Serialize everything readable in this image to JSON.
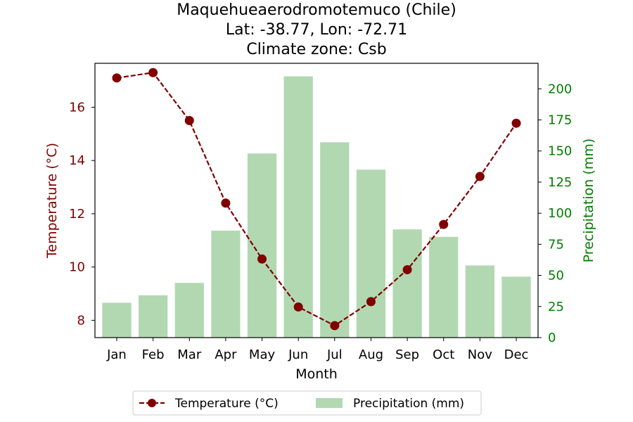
{
  "chart_data": {
    "type": "bar+line",
    "title_lines": [
      "Maquehueaerodromotemuco (Chile)",
      "Lat: -38.77, Lon: -72.71",
      "Climate zone: Csb"
    ],
    "xlabel": "Month",
    "ylabel_left": "Temperature (°C)",
    "ylabel_right": "Precipitation (mm)",
    "categories": [
      "Jan",
      "Feb",
      "Mar",
      "Apr",
      "May",
      "Jun",
      "Jul",
      "Aug",
      "Sep",
      "Oct",
      "Nov",
      "Dec"
    ],
    "temperature": {
      "name": "Temperature (°C)",
      "values": [
        17.1,
        17.3,
        15.5,
        12.4,
        10.3,
        8.5,
        7.8,
        8.7,
        9.9,
        11.6,
        13.4,
        15.4
      ],
      "color": "#800000",
      "axis": "left",
      "style": "dashed line with circle markers"
    },
    "precipitation": {
      "name": "Precipitation (mm)",
      "values": [
        28,
        34,
        44,
        86,
        148,
        210,
        157,
        135,
        87,
        81,
        58,
        49
      ],
      "color": "#b2d8b2",
      "axis": "right"
    },
    "ylim_left": [
      7.35,
      17.65
    ],
    "yticks_left": [
      8,
      10,
      12,
      14,
      16
    ],
    "left_axis_color": "#800000",
    "ylim_right": [
      0,
      220.5
    ],
    "yticks_right": [
      0,
      25,
      50,
      75,
      100,
      125,
      150,
      175,
      200
    ],
    "right_axis_color": "#008000",
    "legend_position": "bottom-center",
    "grid": false
  }
}
